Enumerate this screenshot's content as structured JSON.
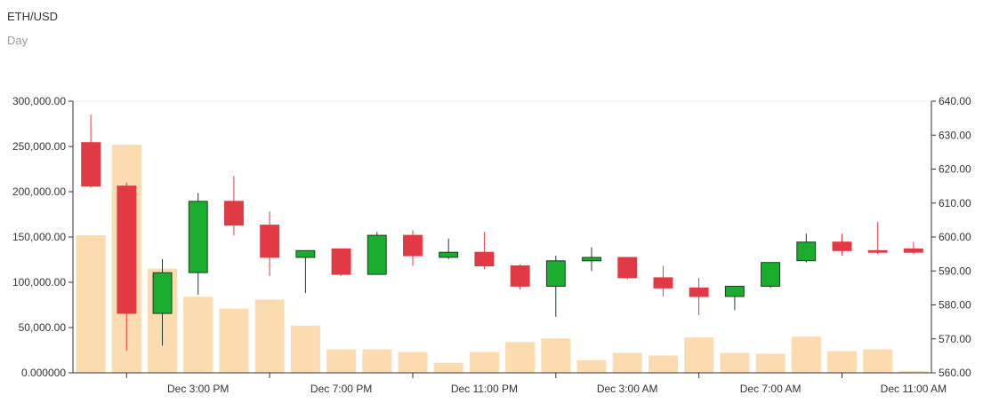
{
  "header": {
    "title": "ETH/USD",
    "subtitle": "Day"
  },
  "colors": {
    "up": "#1aac2c",
    "down": "#e23a45",
    "up_border": "#1f3b2a",
    "volume": "#fddbb0",
    "axis": "#333333",
    "grid": "#eeeeee"
  },
  "chart_data": {
    "type": "candlestick",
    "title": "ETH/USD",
    "subtitle": "Day",
    "left_axis": {
      "ylim": [
        0,
        300000
      ],
      "ticks": [
        0,
        50000,
        100000,
        150000,
        200000,
        250000,
        300000
      ],
      "tick_labels": [
        "0.000000",
        "50,000.00",
        "100,000.00",
        "150,000.00",
        "200,000.00",
        "250,000.00",
        "300,000.00"
      ]
    },
    "right_axis": {
      "ylim": [
        560,
        640
      ],
      "ticks": [
        560,
        570,
        580,
        590,
        600,
        610,
        620,
        630,
        640
      ],
      "tick_labels": [
        "560.00",
        "570.00",
        "580.00",
        "590.00",
        "600.00",
        "610.00",
        "620.00",
        "630.00",
        "640.00"
      ]
    },
    "x_tick_labels": [
      "Dec 3:00 PM",
      "Dec 7:00 PM",
      "Dec 11:00 PM",
      "Dec 3:00 AM",
      "Dec 7:00 AM",
      "Dec 11:00 AM"
    ],
    "x_ticks_between_labels": true,
    "grid": false,
    "candles": [
      {
        "open": 627.8,
        "high": 636.0,
        "low": 614.5,
        "close": 615.0
      },
      {
        "open": 615.0,
        "high": 616.0,
        "low": 566.5,
        "close": 577.5
      },
      {
        "open": 577.5,
        "high": 593.5,
        "low": 568.0,
        "close": 589.5
      },
      {
        "open": 589.5,
        "high": 613.0,
        "low": 583.0,
        "close": 610.5
      },
      {
        "open": 610.5,
        "high": 618.0,
        "low": 600.5,
        "close": 603.5
      },
      {
        "open": 603.5,
        "high": 607.5,
        "low": 588.5,
        "close": 594.0
      },
      {
        "open": 594.0,
        "high": 596.0,
        "low": 583.5,
        "close": 596.0
      },
      {
        "open": 596.5,
        "high": 596.5,
        "low": 588.5,
        "close": 589.0
      },
      {
        "open": 589.0,
        "high": 601.5,
        "low": 589.0,
        "close": 600.5
      },
      {
        "open": 600.5,
        "high": 602.0,
        "low": 591.5,
        "close": 594.5
      },
      {
        "open": 594.0,
        "high": 599.5,
        "low": 593.5,
        "close": 595.5
      },
      {
        "open": 595.5,
        "high": 601.5,
        "low": 590.5,
        "close": 591.5
      },
      {
        "open": 591.5,
        "high": 592.0,
        "low": 584.5,
        "close": 585.5
      },
      {
        "open": 585.5,
        "high": 594.5,
        "low": 576.5,
        "close": 593.0
      },
      {
        "open": 593.0,
        "high": 597.0,
        "low": 590.0,
        "close": 594.0
      },
      {
        "open": 594.0,
        "high": 594.0,
        "low": 587.5,
        "close": 588.0
      },
      {
        "open": 588.0,
        "high": 591.5,
        "low": 582.5,
        "close": 585.0
      },
      {
        "open": 585.0,
        "high": 588.0,
        "low": 577.0,
        "close": 582.5
      },
      {
        "open": 582.5,
        "high": 585.5,
        "low": 578.5,
        "close": 585.5
      },
      {
        "open": 585.5,
        "high": 592.5,
        "low": 585.0,
        "close": 592.5
      },
      {
        "open": 593.0,
        "high": 601.0,
        "low": 592.5,
        "close": 598.5
      },
      {
        "open": 598.5,
        "high": 601.0,
        "low": 594.5,
        "close": 596.0
      },
      {
        "open": 596.0,
        "high": 604.5,
        "low": 595.0,
        "close": 595.5
      },
      {
        "open": 596.5,
        "high": 598.5,
        "low": 595.0,
        "close": 595.5
      }
    ],
    "volume": [
      152000,
      252000,
      115000,
      84000,
      71000,
      81000,
      52000,
      26000,
      26000,
      23000,
      11000,
      23000,
      34000,
      38000,
      14000,
      22000,
      19000,
      39000,
      22000,
      21000,
      40000,
      24000,
      26000,
      2000
    ]
  }
}
